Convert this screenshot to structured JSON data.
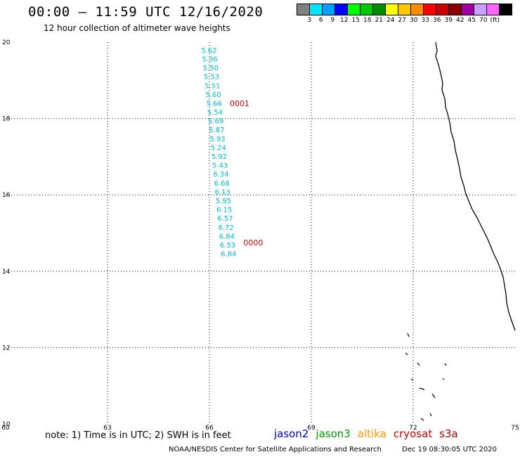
{
  "header": {
    "title": "00:00 – 11:59 UTC 12/16/2020",
    "subtitle": "12 hour collection of altimeter wave heights"
  },
  "color_scale": {
    "colors": [
      "#808080",
      "#00e5ff",
      "#00a0ff",
      "#0000ff",
      "#00ff00",
      "#00c800",
      "#008c00",
      "#ffff00",
      "#ffc800",
      "#ff8c00",
      "#ff0000",
      "#c80000",
      "#8c0000",
      "#a000a0",
      "#c8a0ff",
      "#ff64ff",
      "#000000"
    ],
    "labels": [
      "3",
      "6",
      "9",
      "12",
      "15",
      "18",
      "21",
      "24",
      "27",
      "30",
      "33",
      "36",
      "39",
      "42",
      "45",
      "70",
      "(ft)"
    ]
  },
  "axes": {
    "x_ticks": [
      "60",
      "63",
      "66",
      "69",
      "72",
      "75"
    ],
    "y_ticks": [
      "10",
      "12",
      "14",
      "16",
      "18",
      "20"
    ],
    "x_range": [
      60,
      75
    ],
    "y_range": [
      10,
      20
    ]
  },
  "track": {
    "color": "#00bcd4",
    "values": [
      "5.62",
      "5.36",
      "5.50",
      "5.53",
      "5.51",
      "5.60",
      "5.66",
      "5.54",
      "5.69",
      "5.87",
      "5.93",
      "5.24",
      "5.92",
      "5.43",
      "6.34",
      "6.68",
      "6.13",
      "5.95",
      "6.15",
      "6.57",
      "6.72",
      "6.84",
      "6.53",
      "6.84"
    ],
    "lat_start": 19.8,
    "lat_step": -0.232,
    "lon_start": 65.8,
    "lon_step": 0.025
  },
  "time_labels": [
    {
      "text": "0001",
      "lon": 66.6,
      "lat": 18.4
    },
    {
      "text": "0000",
      "lon": 67.0,
      "lat": 14.75
    }
  ],
  "note": "note: 1) Time is in UTC; 2) SWH is in feet",
  "satellites": [
    {
      "name": "jason2",
      "color": "#0000cc"
    },
    {
      "name": "jason3",
      "color": "#009900"
    },
    {
      "name": "altika",
      "color": "#ff9900"
    },
    {
      "name": "cryosat",
      "color": "#cc0000"
    },
    {
      "name": "s3a",
      "color": "#990000"
    }
  ],
  "footer": {
    "credit": "NOAA/NESDIS Center for Satellite Applications and Research",
    "timestamp": "Dec 19 08:30:05 UTC 2020"
  }
}
